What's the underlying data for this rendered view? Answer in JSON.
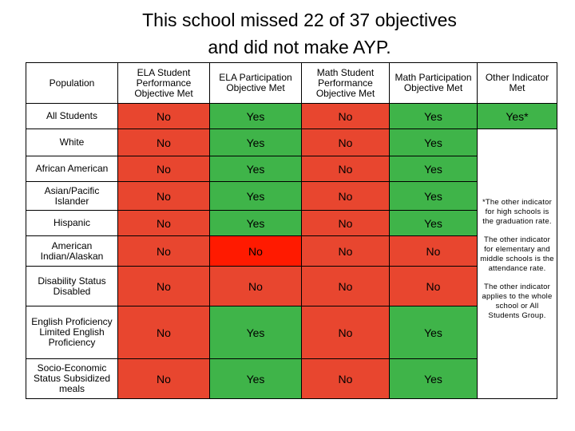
{
  "title": {
    "line1": "This school missed 22 of 37 objectives",
    "line2": "and did not make AYP."
  },
  "headers": [
    "Population",
    "ELA Student Performance Objective Met",
    "ELA Participation Objective Met",
    "Math Student Performance Objective Met",
    "Math Participation Objective Met",
    "Other Indicator Met"
  ],
  "rows": [
    {
      "label": "All Students",
      "cells": [
        "No",
        "Yes",
        "No",
        "Yes"
      ],
      "other": "Yes*"
    },
    {
      "label": "White",
      "cells": [
        "No",
        "Yes",
        "No",
        "Yes"
      ]
    },
    {
      "label": "African American",
      "cells": [
        "No",
        "Yes",
        "No",
        "Yes"
      ]
    },
    {
      "label": "Asian/Pacific Islander",
      "cells": [
        "No",
        "Yes",
        "No",
        "Yes"
      ]
    },
    {
      "label": "Hispanic",
      "cells": [
        "No",
        "Yes",
        "No",
        "Yes"
      ]
    },
    {
      "label": "American Indian/Alaskan",
      "cells": [
        "No",
        "No",
        "No",
        "No"
      ]
    },
    {
      "label": "Disability Status Disabled",
      "cells": [
        "No",
        "No",
        "No",
        "No"
      ]
    },
    {
      "label": "English Proficiency Limited English Proficiency",
      "cells": [
        "No",
        "Yes",
        "No",
        "Yes"
      ]
    },
    {
      "label": "Socio-Economic Status Subsidized meals",
      "cells": [
        "No",
        "Yes",
        "No",
        "Yes"
      ]
    }
  ],
  "notes": [
    "*The other indicator for high schools is the graduation rate.",
    "The other indicator for elementary and middle schools is the attendance rate.",
    "The other indicator applies to the whole school or All Students Group."
  ],
  "colors": {
    "yes": "#3fb449",
    "no": "#e8462f",
    "no_participation": "#ff1a00"
  }
}
